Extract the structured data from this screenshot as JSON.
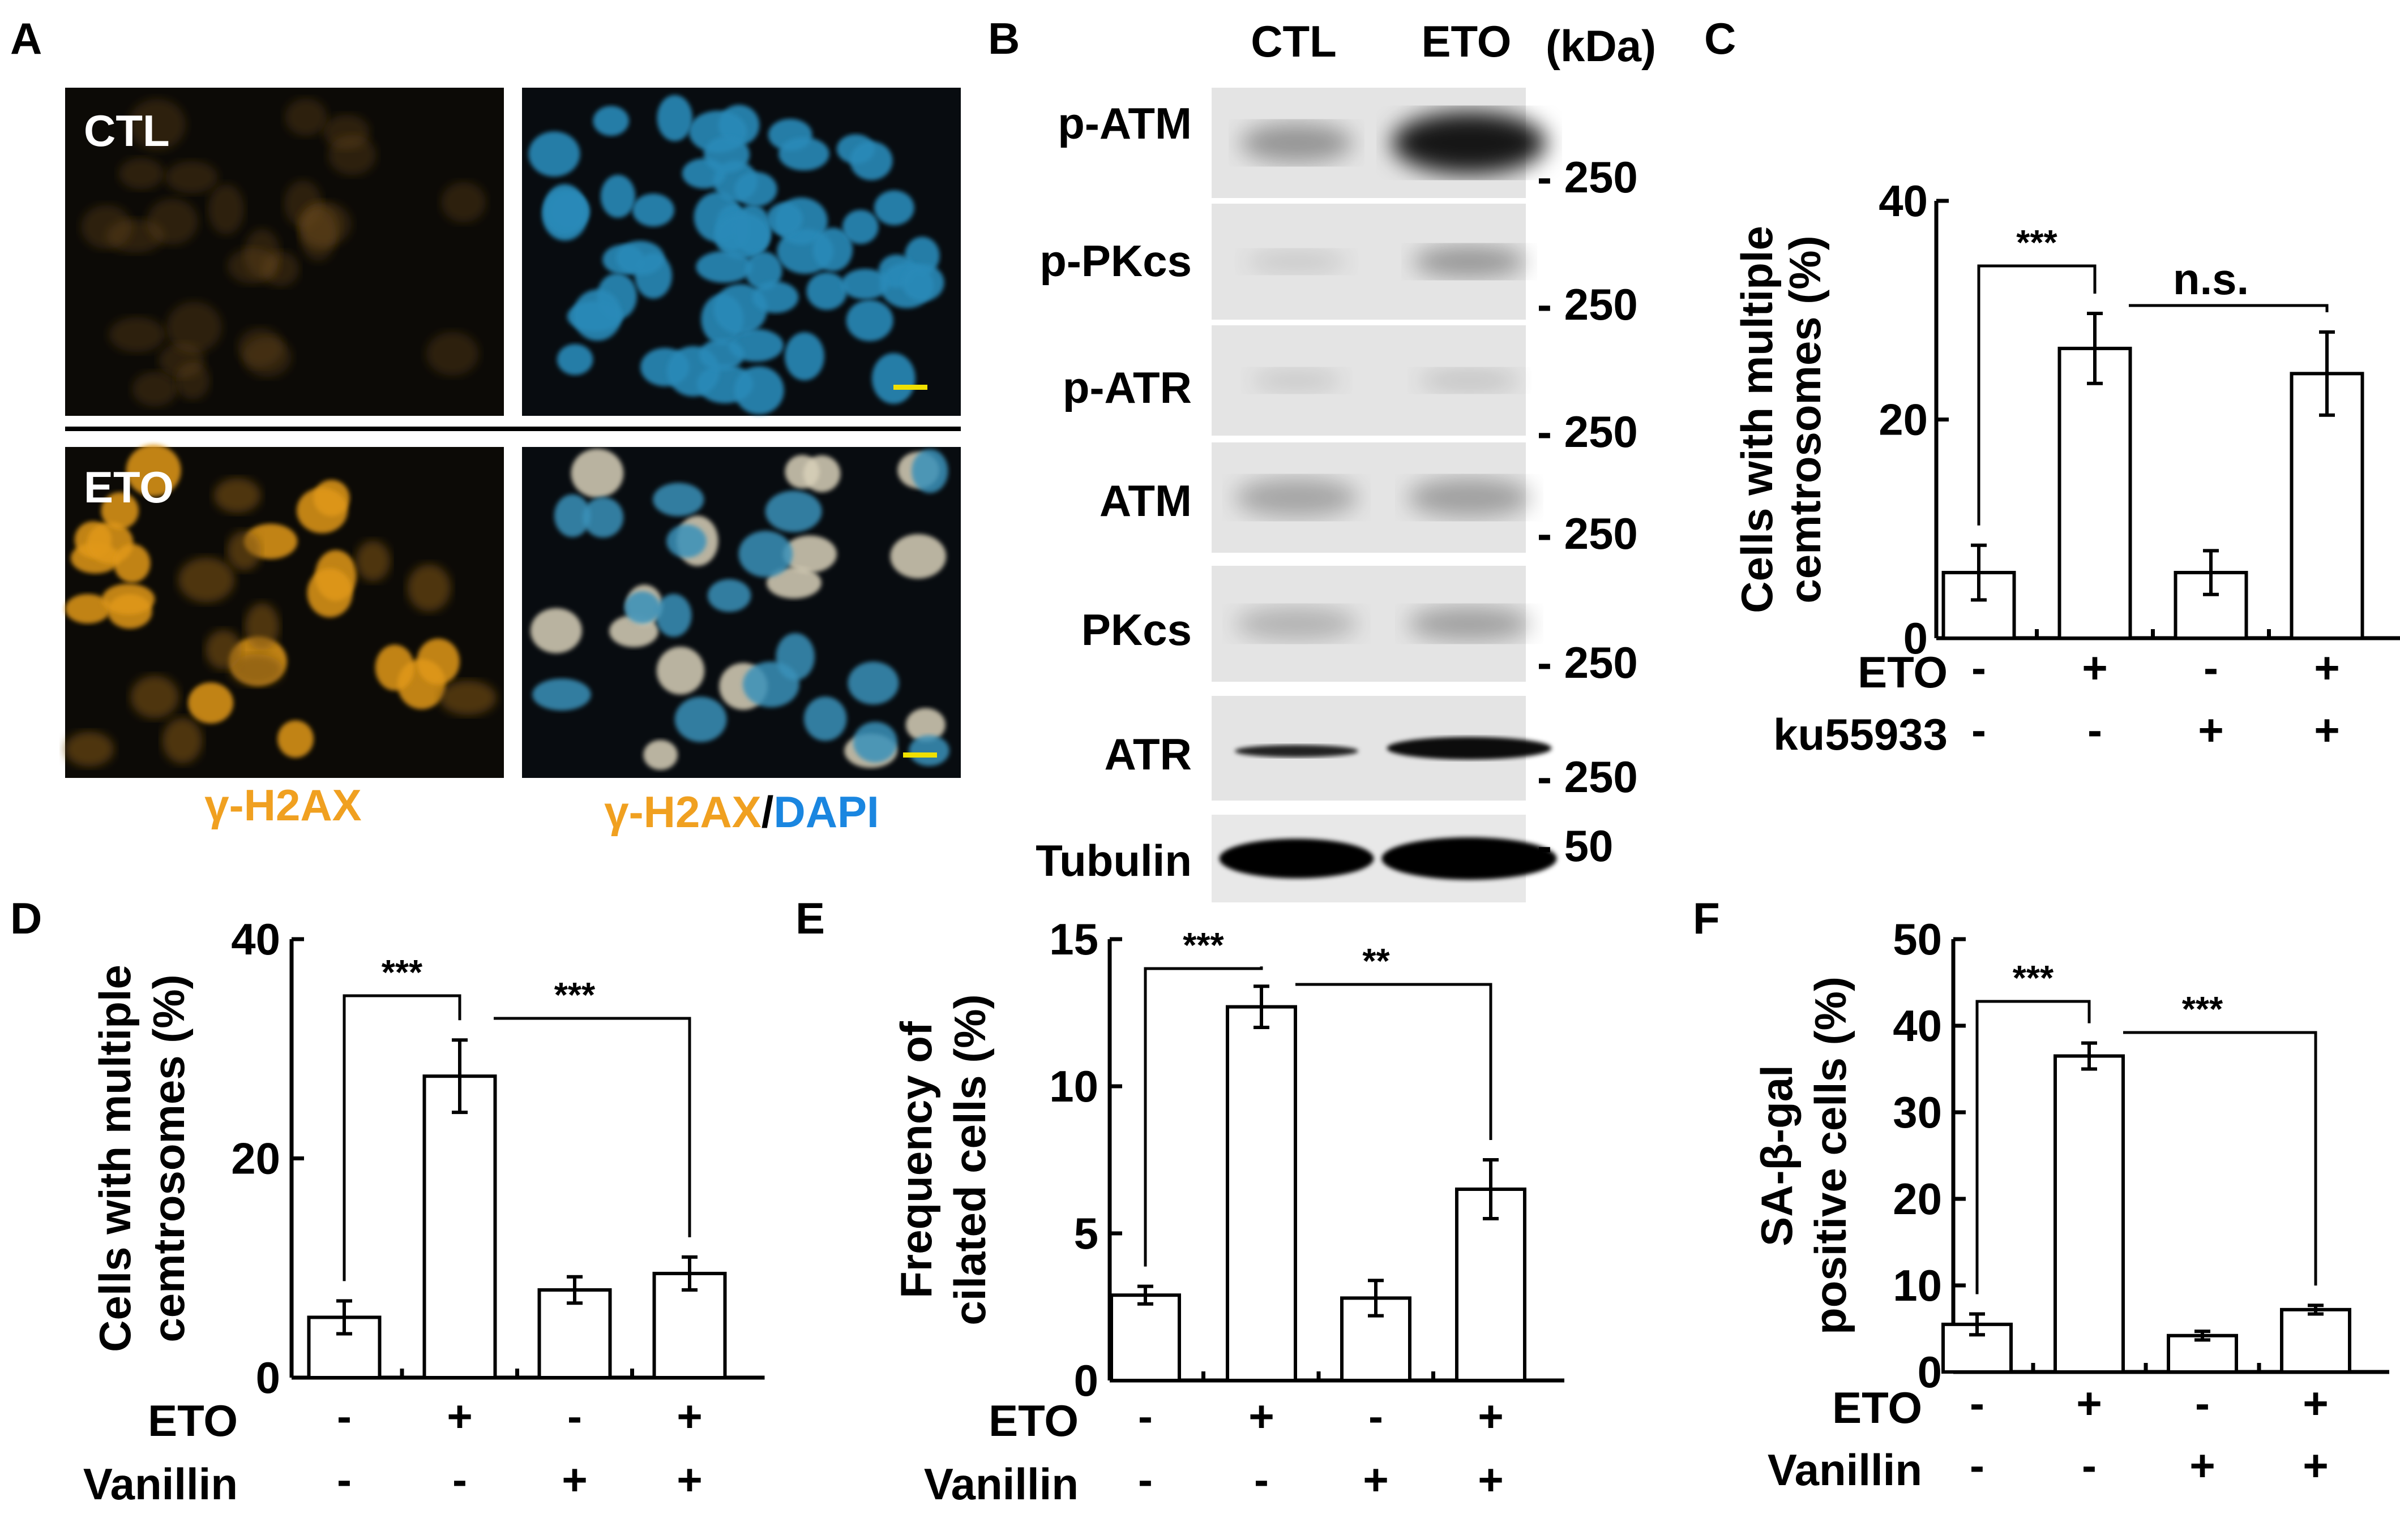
{
  "panel_labels": {
    "A": "A",
    "B": "B",
    "C": "C",
    "D": "D",
    "E": "E",
    "F": "F"
  },
  "panel_a": {
    "row_labels": [
      "CTL",
      "ETO"
    ],
    "captions": {
      "left": "γ-H2AX",
      "right_part1": "γ-H2AX",
      "right_sep": "/",
      "right_part2": "DAPI"
    },
    "colors": {
      "gamma_h2ax": "#f0a020",
      "dapi": "#1a86e0",
      "scale_bar": "#f0e000"
    }
  },
  "panel_b": {
    "lane_labels": [
      "CTL",
      "ETO"
    ],
    "unit": "(kDa)",
    "blots": [
      {
        "name": "p-ATM",
        "marker": "- 250"
      },
      {
        "name": "p-PKcs",
        "marker": "- 250"
      },
      {
        "name": "p-ATR",
        "marker": "- 250"
      },
      {
        "name": "ATM",
        "marker": "- 250"
      },
      {
        "name": "PKcs",
        "marker": "- 250"
      },
      {
        "name": "ATR",
        "marker": "- 250"
      },
      {
        "name": "Tubulin",
        "marker": "- 50"
      }
    ]
  },
  "chart_data": [
    {
      "panel": "C",
      "type": "bar",
      "ylabel_line1": "Cells with multiple",
      "ylabel_line2": "cemtrosomes (%)",
      "ylim": [
        0,
        40
      ],
      "yticks": [
        0,
        20,
        40
      ],
      "values": [
        6,
        26.5,
        6,
        24.2
      ],
      "errors": [
        2.5,
        3.2,
        2.0,
        3.8
      ],
      "conditions": [
        {
          "name": "ETO",
          "signs": [
            "-",
            "+",
            "-",
            "+"
          ]
        },
        {
          "name": "ku55933",
          "signs": [
            "-",
            "-",
            "+",
            "+"
          ]
        }
      ],
      "significance": [
        {
          "from": 0,
          "to": 1,
          "label": "***"
        },
        {
          "from": 1,
          "to": 3,
          "label": "n.s."
        }
      ]
    },
    {
      "panel": "D",
      "type": "bar",
      "ylabel_line1": "Cells with multiple",
      "ylabel_line2": "cemtrosomes (%)",
      "ylim": [
        0,
        40
      ],
      "yticks": [
        0,
        20,
        40
      ],
      "values": [
        5.5,
        27.5,
        8,
        9.5
      ],
      "errors": [
        1.5,
        3.3,
        1.2,
        1.5
      ],
      "conditions": [
        {
          "name": "ETO",
          "signs": [
            "-",
            "+",
            "-",
            "+"
          ]
        },
        {
          "name": "Vanillin",
          "signs": [
            "-",
            "-",
            "+",
            "+"
          ]
        }
      ],
      "significance": [
        {
          "from": 0,
          "to": 1,
          "label": "***"
        },
        {
          "from": 1,
          "to": 3,
          "label": "***"
        }
      ]
    },
    {
      "panel": "E",
      "type": "bar",
      "ylabel_line1": "Frequency of",
      "ylabel_line2": "cilated cells (%)",
      "ylim": [
        0,
        15
      ],
      "yticks": [
        0,
        5,
        10,
        15
      ],
      "values": [
        2.9,
        12.7,
        2.8,
        6.5
      ],
      "errors": [
        0.3,
        0.7,
        0.6,
        1.0
      ],
      "conditions": [
        {
          "name": "ETO",
          "signs": [
            "-",
            "+",
            "-",
            "+"
          ]
        },
        {
          "name": "Vanillin",
          "signs": [
            "-",
            "-",
            "+",
            "+"
          ]
        }
      ],
      "significance": [
        {
          "from": 0,
          "to": 1,
          "label": "***"
        },
        {
          "from": 1,
          "to": 3,
          "label": "**"
        }
      ]
    },
    {
      "panel": "F",
      "type": "bar",
      "ylabel_line1": "SA-β-gal",
      "ylabel_line2": "positive cells (%)",
      "ylim": [
        0,
        50
      ],
      "yticks": [
        0,
        10,
        20,
        30,
        40,
        50
      ],
      "values": [
        5.5,
        36.5,
        4.2,
        7.2
      ],
      "errors": [
        1.2,
        1.5,
        0.5,
        0.5
      ],
      "conditions": [
        {
          "name": "ETO",
          "signs": [
            "-",
            "+",
            "-",
            "+"
          ]
        },
        {
          "name": "Vanillin",
          "signs": [
            "-",
            "-",
            "+",
            "+"
          ]
        }
      ],
      "significance": [
        {
          "from": 0,
          "to": 1,
          "label": "***"
        },
        {
          "from": 1,
          "to": 3,
          "label": "***"
        }
      ]
    }
  ]
}
